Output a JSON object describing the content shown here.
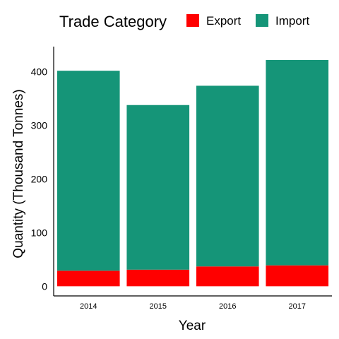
{
  "chart_data": {
    "type": "bar",
    "stacked": true,
    "categories": [
      "2014",
      "2015",
      "2016",
      "2017"
    ],
    "series": [
      {
        "name": "Export",
        "color": "#ff0000",
        "values": [
          29,
          31,
          37,
          39
        ]
      },
      {
        "name": "Import",
        "color": "#159578",
        "values": [
          373,
          307,
          337,
          383
        ]
      }
    ],
    "xlabel": "Year",
    "ylabel": "Quantity (Thousand Tonnes)",
    "ylim": [
      -18,
      447
    ],
    "yticks": [
      0,
      100,
      200,
      300,
      400
    ],
    "legend": {
      "title": "Trade Category",
      "placement": "top"
    },
    "grid": false
  }
}
